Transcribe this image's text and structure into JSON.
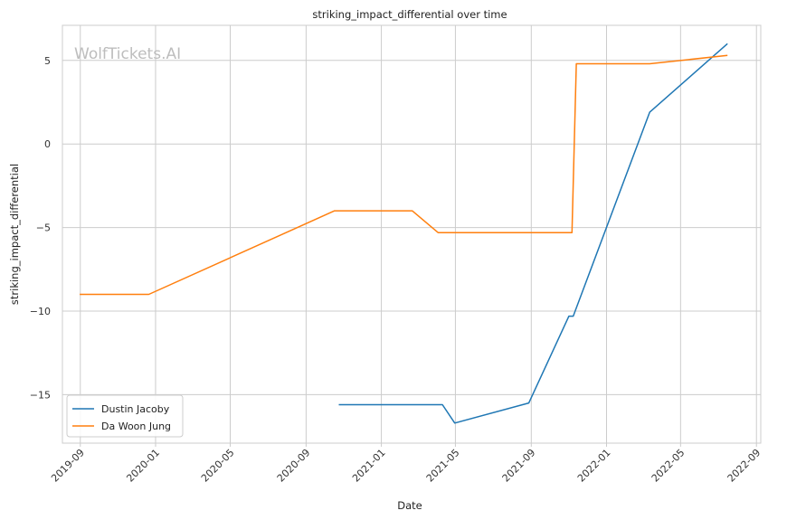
{
  "chart_data": {
    "type": "line",
    "title": "striking_impact_differential over time",
    "xlabel": "Date",
    "ylabel": "striking_impact_differential",
    "watermark": "WolfTickets.AI",
    "grid": true,
    "legend_position": "lower-left",
    "xlim": [
      "2019-08-03",
      "2022-09-08"
    ],
    "ylim": [
      -17.9,
      7.1
    ],
    "x_ticks": [
      "2019-09",
      "2020-01",
      "2020-05",
      "2020-09",
      "2021-01",
      "2021-05",
      "2021-09",
      "2022-01",
      "2022-05",
      "2022-09"
    ],
    "y_ticks": [
      -15,
      -10,
      -5,
      0,
      5
    ],
    "y_tick_labels": [
      "−15",
      "−10",
      "−5",
      "0",
      "5"
    ],
    "series": [
      {
        "name": "Dustin Jacoby",
        "color": "#1f77b4",
        "points": [
          {
            "x": "2020-10-24",
            "y": -15.6
          },
          {
            "x": "2021-04-10",
            "y": -15.6
          },
          {
            "x": "2021-04-30",
            "y": -16.7
          },
          {
            "x": "2021-08-28",
            "y": -15.5
          },
          {
            "x": "2021-11-01",
            "y": -10.3
          },
          {
            "x": "2021-11-08",
            "y": -10.3
          },
          {
            "x": "2022-03-12",
            "y": 1.9
          },
          {
            "x": "2022-07-16",
            "y": 6.0
          }
        ]
      },
      {
        "name": "Da Woon Jung",
        "color": "#ff7f0e",
        "points": [
          {
            "x": "2019-08-31",
            "y": -9.0
          },
          {
            "x": "2019-12-21",
            "y": -9.0
          },
          {
            "x": "2020-10-17",
            "y": -4.0
          },
          {
            "x": "2021-02-20",
            "y": -4.0
          },
          {
            "x": "2021-04-03",
            "y": -5.3
          },
          {
            "x": "2021-11-06",
            "y": -5.3
          },
          {
            "x": "2021-11-13",
            "y": 4.8
          },
          {
            "x": "2022-03-12",
            "y": 4.8
          },
          {
            "x": "2022-07-16",
            "y": 5.3
          }
        ]
      }
    ]
  }
}
